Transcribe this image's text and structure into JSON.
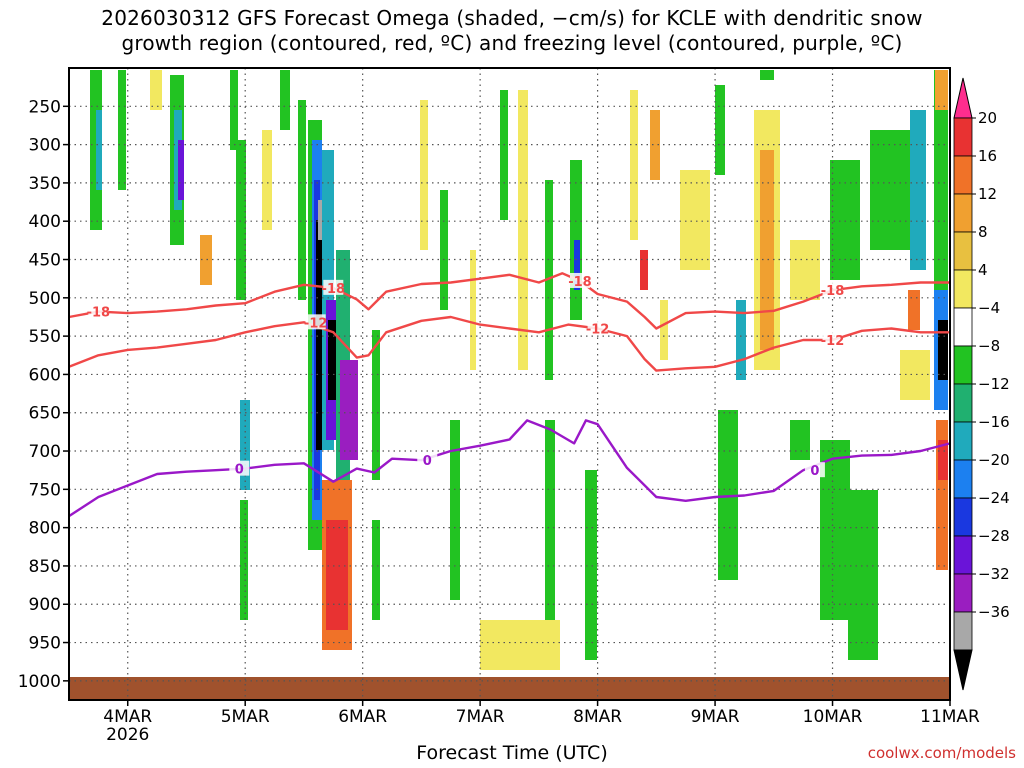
{
  "chart_data": {
    "type": "heatmap",
    "title_lines": [
      "2026030312 GFS Forecast Omega (shaded, −cm/s) for KCLE with dendritic snow",
      "growth region (contoured, red, ºC) and freezing level (contoured, purple, ºC)"
    ],
    "xlabel": "Forecast Time (UTC)",
    "ylabel": "",
    "credit": "coolwx.com/models",
    "x_axis": {
      "range_days": [
        3.5,
        11.0
      ],
      "ticks": [
        {
          "value": 4,
          "label": "4MAR",
          "sublabel": "2026"
        },
        {
          "value": 5,
          "label": "5MAR",
          "sublabel": ""
        },
        {
          "value": 6,
          "label": "6MAR",
          "sublabel": ""
        },
        {
          "value": 7,
          "label": "7MAR",
          "sublabel": ""
        },
        {
          "value": 8,
          "label": "8MAR",
          "sublabel": ""
        },
        {
          "value": 9,
          "label": "9MAR",
          "sublabel": ""
        },
        {
          "value": 10,
          "label": "10MAR",
          "sublabel": ""
        },
        {
          "value": 11,
          "label": "11MAR",
          "sublabel": ""
        }
      ]
    },
    "y_axis": {
      "range_hPa": [
        1025,
        200
      ],
      "inverted": true,
      "ticks": [
        250,
        300,
        350,
        400,
        450,
        500,
        550,
        600,
        650,
        700,
        750,
        800,
        850,
        900,
        950,
        1000
      ]
    },
    "grid": true,
    "colorbar": {
      "placement": "right",
      "labels": [
        "20",
        "16",
        "12",
        "8",
        "4",
        "−4",
        "−8",
        "−12",
        "−16",
        "−20",
        "−24",
        "−28",
        "−32",
        "−36"
      ],
      "colors": [
        "#ff2d8e",
        "#e83232",
        "#f07228",
        "#f0a030",
        "#e8c040",
        "#f2e860",
        "#ffffff",
        "#22c322",
        "#20b070",
        "#20aabc",
        "#1c80f0",
        "#1a38e0",
        "#6a14d8",
        "#9a1ec0",
        "#a8a8a8",
        "#000000"
      ]
    },
    "contours": [
      {
        "name": "dendritic-18",
        "color": "#f04848",
        "labels": [
          "-18",
          "-18",
          "-18",
          "-18"
        ],
        "label_x": [
          3.75,
          5.75,
          7.85,
          10.0
        ],
        "points": [
          [
            3.5,
            525
          ],
          [
            3.75,
            518
          ],
          [
            4.0,
            520
          ],
          [
            4.25,
            518
          ],
          [
            4.5,
            515
          ],
          [
            4.75,
            510
          ],
          [
            5.0,
            507
          ],
          [
            5.25,
            492
          ],
          [
            5.5,
            483
          ],
          [
            5.75,
            487
          ],
          [
            5.95,
            502
          ],
          [
            6.05,
            515
          ],
          [
            6.2,
            492
          ],
          [
            6.5,
            482
          ],
          [
            6.75,
            480
          ],
          [
            7.0,
            475
          ],
          [
            7.25,
            470
          ],
          [
            7.5,
            480
          ],
          [
            7.7,
            468
          ],
          [
            7.85,
            478
          ],
          [
            8.0,
            495
          ],
          [
            8.25,
            505
          ],
          [
            8.4,
            525
          ],
          [
            8.5,
            540
          ],
          [
            8.75,
            520
          ],
          [
            9.0,
            518
          ],
          [
            9.25,
            520
          ],
          [
            9.5,
            517
          ],
          [
            9.75,
            505
          ],
          [
            10.0,
            490
          ],
          [
            10.25,
            485
          ],
          [
            10.5,
            483
          ],
          [
            10.75,
            480
          ],
          [
            11.0,
            480
          ]
        ]
      },
      {
        "name": "dendritic-12",
        "color": "#f04848",
        "labels": [
          "-12",
          "-12",
          "-12"
        ],
        "label_x": [
          5.6,
          8.0,
          10.0
        ],
        "points": [
          [
            3.5,
            590
          ],
          [
            3.75,
            575
          ],
          [
            4.0,
            568
          ],
          [
            4.25,
            565
          ],
          [
            4.5,
            560
          ],
          [
            4.75,
            555
          ],
          [
            5.0,
            545
          ],
          [
            5.25,
            537
          ],
          [
            5.5,
            532
          ],
          [
            5.75,
            545
          ],
          [
            5.95,
            578
          ],
          [
            6.05,
            575
          ],
          [
            6.2,
            545
          ],
          [
            6.5,
            530
          ],
          [
            6.75,
            525
          ],
          [
            7.0,
            535
          ],
          [
            7.25,
            540
          ],
          [
            7.5,
            545
          ],
          [
            7.75,
            535
          ],
          [
            8.0,
            540
          ],
          [
            8.25,
            550
          ],
          [
            8.4,
            580
          ],
          [
            8.5,
            595
          ],
          [
            8.75,
            592
          ],
          [
            9.0,
            590
          ],
          [
            9.25,
            580
          ],
          [
            9.5,
            565
          ],
          [
            9.75,
            555
          ],
          [
            10.0,
            555
          ],
          [
            10.25,
            543
          ],
          [
            10.5,
            540
          ],
          [
            10.75,
            545
          ],
          [
            11.0,
            545
          ]
        ]
      },
      {
        "name": "freezing-level-0",
        "color": "#9a18c8",
        "labels": [
          "0",
          "0",
          "0"
        ],
        "label_x": [
          4.95,
          6.55,
          9.85
        ],
        "points": [
          [
            3.5,
            785
          ],
          [
            3.75,
            760
          ],
          [
            4.0,
            745
          ],
          [
            4.25,
            730
          ],
          [
            4.5,
            727
          ],
          [
            4.75,
            725
          ],
          [
            5.0,
            723
          ],
          [
            5.25,
            718
          ],
          [
            5.5,
            716
          ],
          [
            5.75,
            740
          ],
          [
            5.95,
            723
          ],
          [
            6.1,
            728
          ],
          [
            6.25,
            710
          ],
          [
            6.5,
            712
          ],
          [
            6.75,
            700
          ],
          [
            7.0,
            693
          ],
          [
            7.25,
            685
          ],
          [
            7.4,
            660
          ],
          [
            7.6,
            672
          ],
          [
            7.8,
            690
          ],
          [
            7.9,
            660
          ],
          [
            8.0,
            665
          ],
          [
            8.25,
            722
          ],
          [
            8.5,
            760
          ],
          [
            8.75,
            765
          ],
          [
            9.0,
            760
          ],
          [
            9.25,
            758
          ],
          [
            9.5,
            752
          ],
          [
            9.75,
            725
          ],
          [
            10.0,
            710
          ],
          [
            10.25,
            706
          ],
          [
            10.5,
            705
          ],
          [
            10.75,
            700
          ],
          [
            11.0,
            690
          ]
        ]
      }
    ]
  }
}
